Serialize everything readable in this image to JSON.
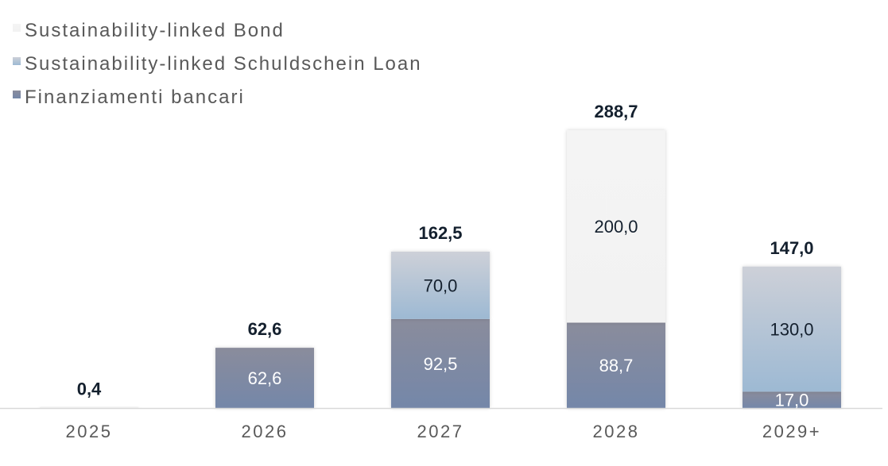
{
  "chart_data": {
    "type": "bar",
    "stacked": true,
    "title": "",
    "xlabel": "",
    "ylabel": "",
    "categories": [
      "2025",
      "2026",
      "2027",
      "2028",
      "2029+"
    ],
    "series": [
      {
        "name": "Finanziamenti bancari",
        "values": [
          null,
          62.6,
          92.5,
          88.7,
          17.0
        ],
        "labels": [
          "",
          "62,6",
          "92,5",
          "88,7",
          "17,0"
        ],
        "color": "#7888a8"
      },
      {
        "name": "Sustainability-linked Schuldschein Loan",
        "values": [
          null,
          null,
          70.0,
          null,
          130.0
        ],
        "labels": [
          "",
          "",
          "70,0",
          "",
          "130,0"
        ],
        "color": "#a9bfd6"
      },
      {
        "name": "Sustainability-linked Bond",
        "values": [
          0.4,
          null,
          null,
          200.0,
          null
        ],
        "labels": [
          "",
          "",
          "",
          "200,0",
          ""
        ],
        "color": "#f4f4f4"
      }
    ],
    "totals": [
      0.4,
      62.6,
      162.5,
      288.7,
      147.0
    ],
    "total_labels": [
      "0,4",
      "62,6",
      "162,5",
      "288,7",
      "147,0"
    ],
    "ylim": [
      0,
      290
    ],
    "grid": false,
    "legend_placement": "top-left",
    "legend_order": [
      "Sustainability-linked Bond",
      "Sustainability-linked Schuldschein Loan",
      "Finanziamenti bancari"
    ]
  }
}
